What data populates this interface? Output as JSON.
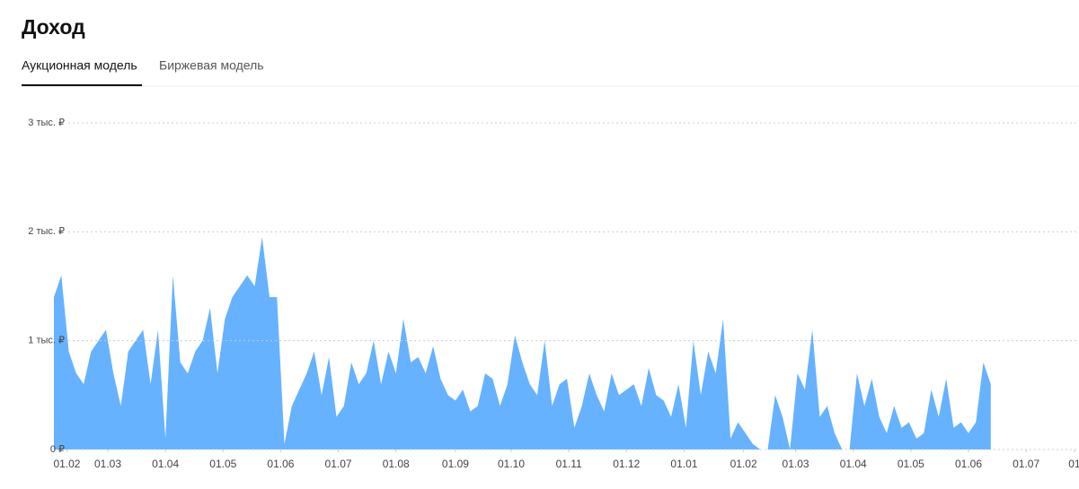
{
  "header": {
    "title": "Доход",
    "tabs": [
      "Аукционная модель",
      "Биржевая модель"
    ],
    "active_tab": 0
  },
  "chart_data": {
    "type": "area",
    "color": "#66b2ff",
    "grid": true,
    "x": [
      0,
      4,
      8,
      12,
      16,
      20,
      24,
      28,
      32,
      36,
      40,
      44,
      48,
      52,
      56,
      60,
      64,
      68,
      72,
      76,
      80,
      84,
      88,
      92,
      96,
      100,
      104,
      108,
      112,
      116,
      120,
      124,
      128,
      132,
      136,
      140,
      144,
      148,
      152,
      156,
      160,
      164,
      168,
      172,
      176,
      180,
      184,
      188,
      192,
      196,
      200,
      204,
      208,
      212,
      216,
      220,
      224,
      228,
      232,
      236,
      240,
      244,
      248,
      252,
      256,
      260,
      264,
      268,
      272,
      276,
      280,
      284,
      288,
      292,
      296,
      300,
      304,
      308,
      312,
      316,
      320,
      324,
      328,
      332,
      336,
      340,
      344,
      348,
      352,
      356,
      360,
      364,
      368,
      372,
      376,
      380,
      384,
      388,
      392,
      396,
      400,
      404,
      408,
      412,
      416,
      420,
      424,
      428,
      432,
      436,
      440,
      444,
      448,
      452,
      456,
      460,
      464,
      468,
      472,
      476,
      480,
      484,
      488,
      492,
      496,
      500,
      504
    ],
    "values": [
      1400,
      1600,
      900,
      700,
      600,
      900,
      1000,
      1100,
      700,
      400,
      900,
      1000,
      1100,
      600,
      1100,
      100,
      1600,
      800,
      700,
      900,
      1000,
      1300,
      700,
      1200,
      1400,
      1500,
      1600,
      1500,
      1950,
      1400,
      1400,
      50,
      400,
      550,
      700,
      900,
      500,
      850,
      300,
      400,
      800,
      600,
      700,
      1000,
      600,
      900,
      700,
      1200,
      800,
      850,
      700,
      950,
      650,
      500,
      450,
      550,
      350,
      400,
      700,
      650,
      400,
      600,
      1050,
      800,
      600,
      500,
      1000,
      400,
      600,
      650,
      200,
      400,
      700,
      500,
      350,
      700,
      500,
      550,
      600,
      400,
      750,
      500,
      450,
      300,
      600,
      200,
      1000,
      500,
      900,
      700,
      1200,
      100,
      250,
      150,
      50,
      0,
      0,
      500,
      300,
      0,
      700,
      550,
      1100,
      300,
      400,
      150,
      0,
      0,
      700,
      400,
      650,
      300,
      150,
      400,
      200,
      250,
      100,
      150,
      550,
      300,
      650,
      200,
      250,
      150,
      250,
      800,
      600
    ],
    "xlim": [
      0,
      550
    ],
    "xticks": [
      {
        "value": 7,
        "label": "01.02"
      },
      {
        "value": 29,
        "label": "01.03"
      },
      {
        "value": 60,
        "label": "01.04"
      },
      {
        "value": 91,
        "label": "01.05"
      },
      {
        "value": 122,
        "label": "01.06"
      },
      {
        "value": 153,
        "label": "01.07"
      },
      {
        "value": 184,
        "label": "01.08"
      },
      {
        "value": 216,
        "label": "01.09"
      },
      {
        "value": 246,
        "label": "01.10"
      },
      {
        "value": 277,
        "label": "01.11"
      },
      {
        "value": 308,
        "label": "01.12"
      },
      {
        "value": 339,
        "label": "01.01"
      },
      {
        "value": 371,
        "label": "01.02"
      },
      {
        "value": 399,
        "label": "01.03"
      },
      {
        "value": 430,
        "label": "01.04"
      },
      {
        "value": 461,
        "label": "01.05"
      },
      {
        "value": 492,
        "label": "01.06"
      },
      {
        "value": 523,
        "label": "01.07"
      },
      {
        "value": 549,
        "label": "01"
      }
    ],
    "ylim": [
      0,
      3000
    ],
    "yticks": [
      {
        "value": 0,
        "label": "0 ₽"
      },
      {
        "value": 1000,
        "label": "1 тыс. ₽"
      },
      {
        "value": 2000,
        "label": "2 тыс. ₽"
      },
      {
        "value": 3000,
        "label": "3 тыс. ₽"
      }
    ]
  }
}
